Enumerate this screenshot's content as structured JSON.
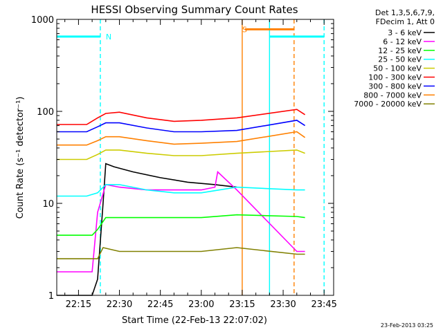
{
  "chart_data": {
    "type": "line",
    "title": "HESSI Observing Summary Count Rates",
    "xlabel": "Start Time (22-Feb-13 22:07:02)",
    "ylabel": "Count Rate (s⁻¹ detector⁻¹)",
    "y_scale": "log",
    "ylim": [
      1,
      1000
    ],
    "xlim": [
      "22:07:02",
      "23:48:30"
    ],
    "x_ticks": [
      "22:15",
      "22:30",
      "22:45",
      "23:00",
      "23:15",
      "23:30",
      "23:45"
    ],
    "y_ticks": [
      "1",
      "10",
      "100",
      "1000"
    ],
    "legend_title": [
      "Det 1,3,5,6,7,9,",
      "FDecim 1, Att 0"
    ],
    "legend_position": "right",
    "footer": "23-Feb-2013 03:25",
    "series": [
      {
        "name": "3 - 6 keV",
        "color": "#000000",
        "x": [
          "22:07",
          "22:20",
          "22:22",
          "22:24",
          "22:25",
          "22:28",
          "22:35",
          "22:45",
          "22:55",
          "23:05",
          "23:13"
        ],
        "y": [
          1.0,
          1.0,
          1.5,
          10,
          27,
          25,
          22,
          19,
          17,
          16,
          15
        ]
      },
      {
        "name": "6 - 12 keV",
        "color": "#ff00ff",
        "x": [
          "22:07",
          "22:18",
          "22:20",
          "22:22",
          "22:25",
          "22:30",
          "22:40",
          "22:50",
          "23:00",
          "23:05",
          "23:06",
          "23:13",
          "23:35",
          "23:38"
        ],
        "y": [
          1.8,
          1.8,
          1.8,
          8,
          16,
          15,
          14,
          14,
          14,
          15,
          22,
          14,
          3,
          3
        ]
      },
      {
        "name": "12 - 25 keV",
        "color": "#00ff00",
        "x": [
          "22:07",
          "22:20",
          "22:22",
          "22:25",
          "22:35",
          "22:50",
          "23:00",
          "23:13",
          "23:35",
          "23:38"
        ],
        "y": [
          4.5,
          4.5,
          5.2,
          7,
          7,
          7,
          7,
          7.5,
          7.2,
          7.0
        ]
      },
      {
        "name": "25 - 50 keV",
        "color": "#00ffff",
        "x": [
          "22:07",
          "22:18",
          "22:22",
          "22:25",
          "22:30",
          "22:40",
          "22:50",
          "23:00",
          "23:13",
          "23:35",
          "23:38"
        ],
        "y": [
          12,
          12,
          13,
          16,
          16,
          14,
          13,
          13,
          15,
          14,
          14
        ]
      },
      {
        "name": "50 - 100 keV",
        "color": "#cccc00",
        "x": [
          "22:07",
          "22:18",
          "22:22",
          "22:25",
          "22:30",
          "22:40",
          "22:50",
          "23:00",
          "23:13",
          "23:35",
          "23:38"
        ],
        "y": [
          30,
          30,
          34,
          38,
          38,
          35,
          33,
          33,
          35,
          38,
          35
        ]
      },
      {
        "name": "100 - 300 keV",
        "color": "#ff0000",
        "x": [
          "22:07",
          "22:18",
          "22:22",
          "22:25",
          "22:30",
          "22:40",
          "22:50",
          "23:00",
          "23:13",
          "23:35",
          "23:38"
        ],
        "y": [
          72,
          72,
          85,
          95,
          98,
          85,
          78,
          80,
          85,
          105,
          92
        ]
      },
      {
        "name": "300 - 800 keV",
        "color": "#0000ff",
        "x": [
          "22:07",
          "22:18",
          "22:22",
          "22:25",
          "22:30",
          "22:40",
          "22:50",
          "23:00",
          "23:13",
          "23:35",
          "23:38"
        ],
        "y": [
          60,
          60,
          68,
          75,
          75,
          66,
          60,
          60,
          62,
          80,
          70
        ]
      },
      {
        "name": "800 - 7000 keV",
        "color": "#ff8000",
        "x": [
          "22:07",
          "22:18",
          "22:22",
          "22:25",
          "22:30",
          "22:40",
          "22:50",
          "23:00",
          "23:13",
          "23:35",
          "23:38"
        ],
        "y": [
          43,
          43,
          48,
          53,
          53,
          48,
          44,
          45,
          47,
          60,
          52
        ]
      },
      {
        "name": "7000 - 20000 keV",
        "color": "#808000",
        "x": [
          "22:07",
          "22:20",
          "22:22",
          "22:24",
          "22:30",
          "22:45",
          "23:00",
          "23:13",
          "23:35",
          "23:38"
        ],
        "y": [
          2.5,
          2.5,
          2.5,
          3.3,
          3.0,
          3.0,
          3.0,
          3.3,
          2.8,
          2.8
        ]
      }
    ],
    "annotations": [
      {
        "text": "N",
        "color": "#00ffff",
        "x": "22:24",
        "y": 650
      },
      {
        "text": "S",
        "color": "#ff8000",
        "x": "23:14",
        "y": 780
      }
    ],
    "flags": [
      {
        "color": "#00ffff",
        "x_start": "22:07",
        "x_end": "22:23",
        "level": 650
      },
      {
        "color": "#ff8000",
        "x_start": "23:16",
        "x_end": "23:34",
        "level": 780
      },
      {
        "color": "#00ffff",
        "x_start": "23:25",
        "x_end": "23:45",
        "level": 650
      }
    ],
    "vertical_markers": [
      {
        "color": "#00ffff",
        "x": "22:23",
        "style": "dashed"
      },
      {
        "color": "#ff8000",
        "x": "23:15",
        "style": "solid"
      },
      {
        "color": "#00ffff",
        "x": "23:25",
        "style": "solid"
      },
      {
        "color": "#ff8000",
        "x": "23:34",
        "style": "dashed"
      },
      {
        "color": "#00ffff",
        "x": "23:45",
        "style": "dashed"
      }
    ]
  }
}
